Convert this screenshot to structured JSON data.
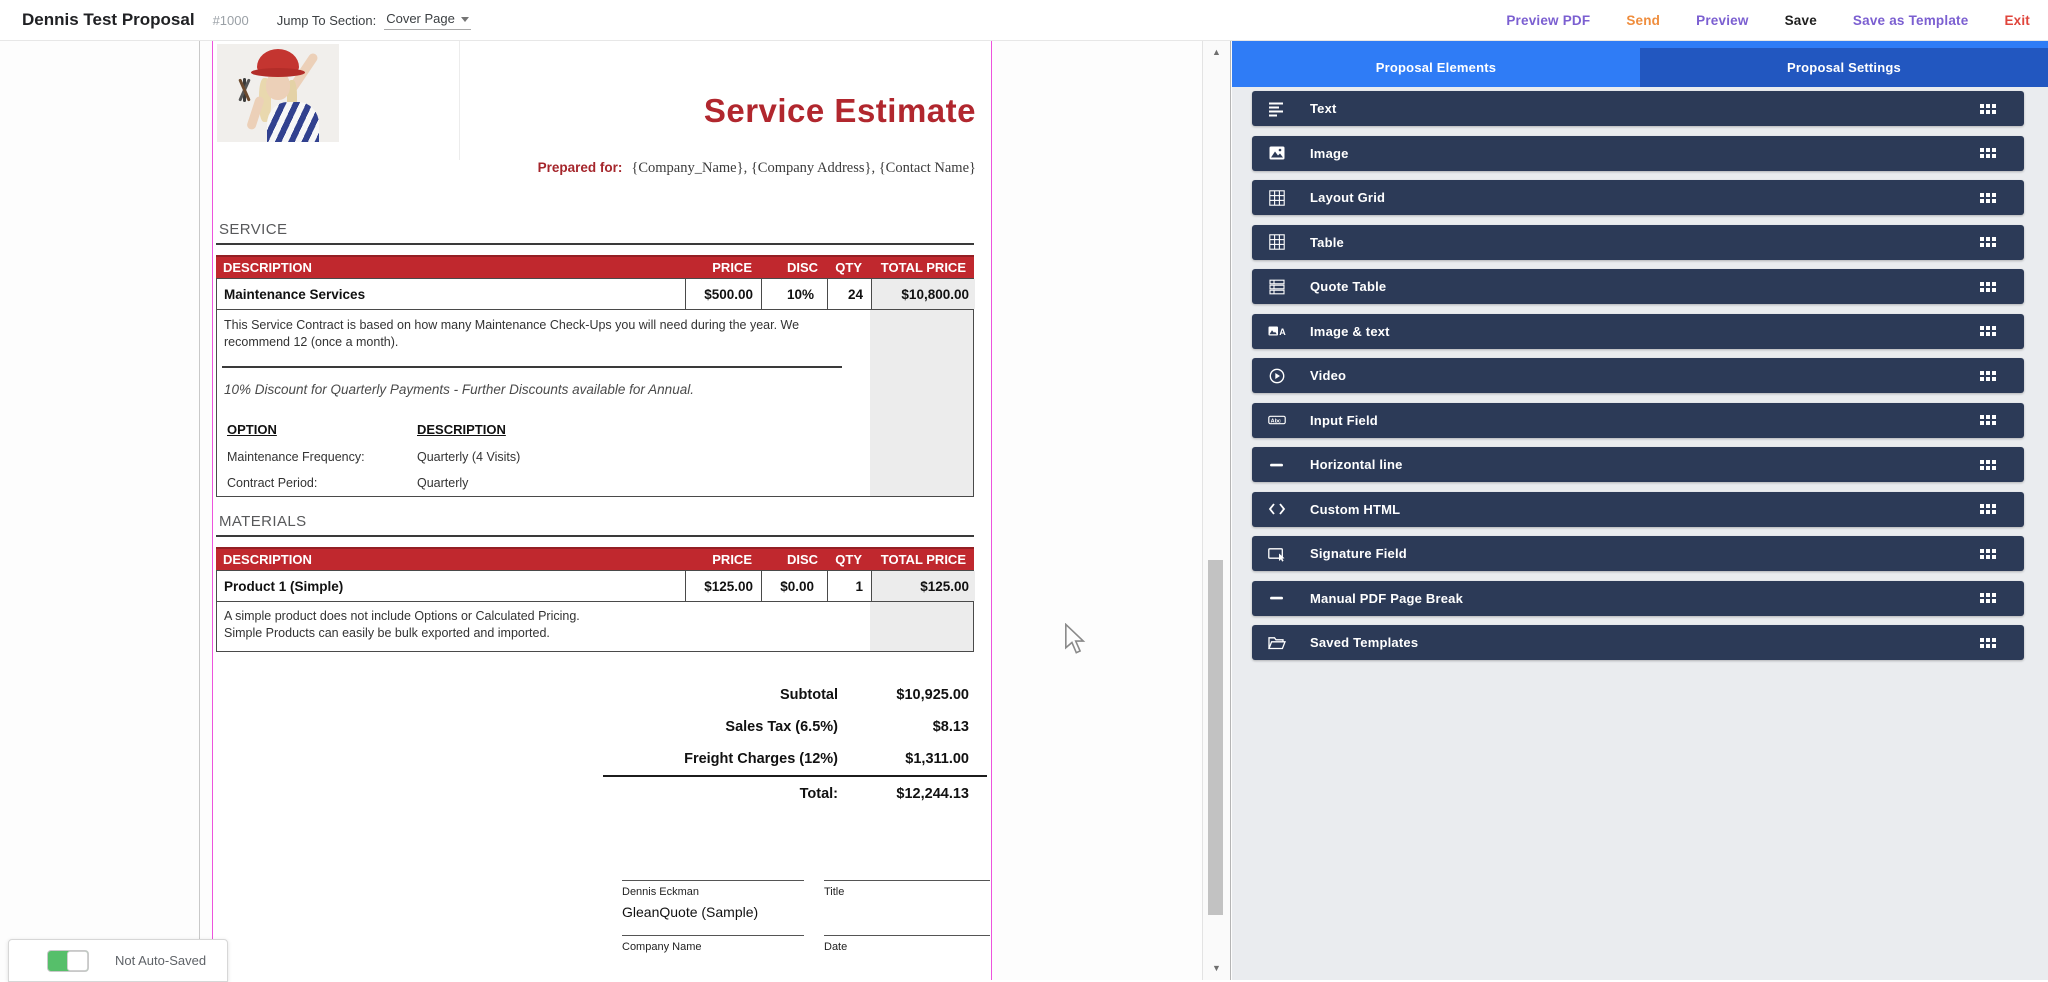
{
  "header": {
    "title": "Dennis Test Proposal",
    "proposal_number": "#1000",
    "jump_label": "Jump To Section:",
    "jump_value": "Cover Page",
    "actions": {
      "preview_pdf": "Preview PDF",
      "send": "Send",
      "preview": "Preview",
      "save": "Save",
      "save_as_template": "Save as Template",
      "exit": "Exit"
    }
  },
  "document": {
    "title": "Service Estimate",
    "prepared_for_label": "Prepared for:",
    "prepared_for_value": "{Company_Name}, {Company Address}, {Contact Name}",
    "columns": [
      "DESCRIPTION",
      "PRICE",
      "DISC",
      "QTY",
      "TOTAL PRICE"
    ],
    "service": {
      "section_label": "SERVICE",
      "row": {
        "description": "Maintenance Services",
        "price": "$500.00",
        "disc": "10%",
        "qty": "24",
        "total": "$10,800.00"
      },
      "note": "This Service Contract is based on how many Maintenance Check-Ups you will need during the year. We recommend 12 (once a month).",
      "discount_note": "10% Discount for Quarterly Payments - Further Discounts available for Annual.",
      "options": {
        "col1": "OPTION",
        "col2": "DESCRIPTION",
        "rows": [
          {
            "label": "Maintenance Frequency:",
            "value": "Quarterly (4 Visits)"
          },
          {
            "label": "Contract Period:",
            "value": "Quarterly"
          }
        ]
      }
    },
    "materials": {
      "section_label": "MATERIALS",
      "row": {
        "description": "Product 1 (Simple)",
        "price": "$125.00",
        "disc": "$0.00",
        "qty": "1",
        "total": "$125.00"
      },
      "note_line1": "A simple product does not include Options or Calculated Pricing.",
      "note_line2": "Simple Products can easily be bulk exported and imported."
    },
    "totals": {
      "rows": [
        {
          "label": "Subtotal",
          "value": "$10,925.00"
        },
        {
          "label": "Sales Tax (6.5%)",
          "value": "$8.13"
        },
        {
          "label": "Freight Charges (12%)",
          "value": "$1,311.00"
        }
      ],
      "total_label": "Total:",
      "total_value": "$12,244.13"
    },
    "signature": {
      "signer_name": "Dennis Eckman",
      "title_label": "Title",
      "company_value": "GleanQuote (Sample)",
      "company_label": "Company Name",
      "date_label": "Date"
    }
  },
  "sidebar": {
    "tabs": [
      {
        "label": "Proposal Elements",
        "active": true
      },
      {
        "label": "Proposal Settings",
        "active": false
      }
    ],
    "items": [
      {
        "label": "Text",
        "icon": "text"
      },
      {
        "label": "Image",
        "icon": "image"
      },
      {
        "label": "Layout Grid",
        "icon": "layout-grid"
      },
      {
        "label": "Table",
        "icon": "table"
      },
      {
        "label": "Quote Table",
        "icon": "quote-table"
      },
      {
        "label": "Image & text",
        "icon": "image-text"
      },
      {
        "label": "Video",
        "icon": "video"
      },
      {
        "label": "Input Field",
        "icon": "input-field"
      },
      {
        "label": "Horizontal line",
        "icon": "horizontal-line"
      },
      {
        "label": "Custom HTML",
        "icon": "custom-html"
      },
      {
        "label": "Signature Field",
        "icon": "signature-field"
      },
      {
        "label": "Manual PDF Page Break",
        "icon": "page-break"
      },
      {
        "label": "Saved Templates",
        "icon": "saved-templates"
      }
    ]
  },
  "footer": {
    "autosave_label": "Not Auto-Saved"
  },
  "colors": {
    "table_header_red": "#c0282e",
    "doc_title_red": "#b1272e",
    "tab_active_blue": "#2f7cf6",
    "tab_inactive_blue": "#2257c0",
    "sidebar_item_navy": "#2c3a57",
    "page_border_pink": "#ed53dd",
    "toggle_green": "#56bf6a",
    "action_purple": "#7b5fd1",
    "action_orange": "#ef8d3d",
    "action_red": "#e0453c"
  }
}
